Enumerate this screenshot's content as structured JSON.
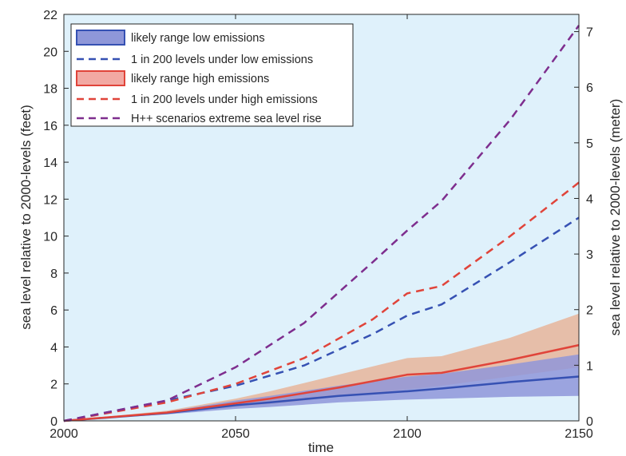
{
  "chart_data": {
    "type": "line",
    "title": "",
    "xlabel": "time",
    "ylabel_left": "sea level relative to 2000-levels (feet)",
    "ylabel_right": "sea level relative to 2000-levels (meter)",
    "xlim": [
      2000,
      2150
    ],
    "ylim_left": [
      0,
      22
    ],
    "ylim_right_m": [
      0,
      7.31
    ],
    "x_ticks": [
      "2000",
      "2050",
      "2100",
      "2150"
    ],
    "y_ticks_left": [
      "0",
      "2",
      "4",
      "6",
      "8",
      "10",
      "12",
      "14",
      "16",
      "18",
      "20",
      "22"
    ],
    "y_ticks_right": [
      "0",
      "1",
      "2",
      "3",
      "4",
      "5",
      "6",
      "7"
    ],
    "background": "#dff1fb",
    "legend_position": "top-left",
    "legend": [
      "likely range low emissions",
      "1 in 200 levels under low emissions",
      "likely range high emissions",
      "1 in 200 levels under high emissions",
      "H++ scenarios extreme sea level rise"
    ],
    "bands": [
      {
        "name": "likely range low emissions",
        "fill": "#8f97d9",
        "edge": "#3651b3",
        "x": [
          2000,
          2030,
          2050,
          2060,
          2080,
          2100,
          2110,
          2130,
          2150
        ],
        "lower": [
          0,
          0.35,
          0.65,
          0.75,
          1.0,
          1.15,
          1.2,
          1.3,
          1.35
        ],
        "upper": [
          0,
          0.5,
          1.1,
          1.35,
          1.9,
          2.4,
          2.55,
          3.05,
          3.6
        ],
        "median": [
          0,
          0.42,
          0.85,
          1.0,
          1.35,
          1.6,
          1.75,
          2.1,
          2.4
        ]
      },
      {
        "name": "likely range high emissions",
        "fill": "#e7b59a",
        "edge": "#e0443a",
        "x": [
          2000,
          2030,
          2050,
          2060,
          2080,
          2100,
          2110,
          2130,
          2150
        ],
        "lower": [
          0,
          0.4,
          0.75,
          0.9,
          1.3,
          1.7,
          1.9,
          2.4,
          2.9
        ],
        "upper": [
          0,
          0.55,
          1.2,
          1.6,
          2.5,
          3.4,
          3.5,
          4.5,
          5.8
        ],
        "median": [
          0,
          0.45,
          0.95,
          1.2,
          1.8,
          2.5,
          2.6,
          3.3,
          4.1
        ]
      }
    ],
    "series": [
      {
        "name": "1 in 200 levels under low emissions",
        "color": "#3651b3",
        "dash": true,
        "x": [
          2000,
          2030,
          2050,
          2070,
          2090,
          2100,
          2110,
          2130,
          2150
        ],
        "values": [
          0,
          1.1,
          1.9,
          3.0,
          4.7,
          5.7,
          6.3,
          8.6,
          11.0
        ]
      },
      {
        "name": "1 in 200 levels under high emissions",
        "color": "#e0443a",
        "dash": true,
        "x": [
          2000,
          2030,
          2050,
          2070,
          2090,
          2100,
          2110,
          2130,
          2150
        ],
        "values": [
          0,
          1.0,
          2.0,
          3.4,
          5.5,
          6.9,
          7.3,
          10.0,
          12.9
        ]
      },
      {
        "name": "H++ scenarios extreme sea level rise",
        "color": "#7e2e8e",
        "dash": true,
        "x": [
          2000,
          2030,
          2050,
          2070,
          2090,
          2100,
          2110,
          2130,
          2150
        ],
        "values": [
          0,
          1.1,
          2.9,
          5.3,
          8.6,
          10.3,
          11.9,
          16.3,
          21.4
        ]
      }
    ]
  }
}
